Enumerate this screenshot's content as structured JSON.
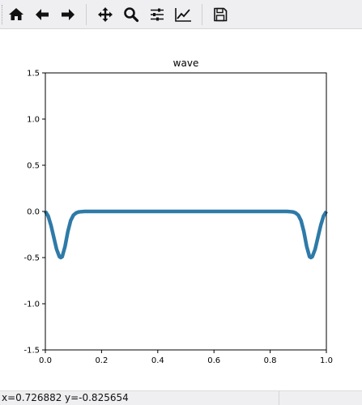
{
  "toolbar": {
    "buttons": [
      {
        "name": "home-button",
        "icon": "home-icon"
      },
      {
        "name": "back-button",
        "icon": "arrow-left-icon"
      },
      {
        "name": "forward-button",
        "icon": "arrow-right-icon"
      },
      {
        "name": "pan-button",
        "icon": "move-icon"
      },
      {
        "name": "zoom-button",
        "icon": "magnifier-icon"
      },
      {
        "name": "subplots-button",
        "icon": "sliders-icon"
      },
      {
        "name": "axes-edit-button",
        "icon": "line-chart-icon"
      },
      {
        "name": "save-button",
        "icon": "floppy-disk-icon"
      }
    ]
  },
  "status": {
    "x_text": "x=0.726882",
    "y_text": "y=-0.825654"
  },
  "chart_data": {
    "type": "line",
    "title": "wave",
    "xlabel": "",
    "ylabel": "",
    "xlim": [
      0.0,
      1.0
    ],
    "ylim": [
      -1.5,
      1.5
    ],
    "xticks": [
      "0.0",
      "0.2",
      "0.4",
      "0.6",
      "0.8",
      "1.0"
    ],
    "yticks": [
      "1.5",
      "1.0",
      "0.5",
      "0.0",
      "-0.5",
      "-1.0",
      "-1.5"
    ],
    "grid": false,
    "line_color": "#2e7aa8",
    "series": [
      {
        "x": [
          0.0,
          0.01,
          0.02,
          0.03,
          0.04,
          0.05,
          0.055,
          0.06,
          0.07,
          0.08,
          0.09,
          0.1,
          0.11,
          0.12,
          0.14,
          0.2,
          0.3,
          0.4,
          0.5,
          0.6,
          0.7,
          0.8,
          0.86,
          0.88,
          0.89,
          0.9,
          0.91,
          0.92,
          0.93,
          0.94,
          0.945,
          0.95,
          0.96,
          0.97,
          0.98,
          0.99,
          1.0
        ],
        "y": [
          0.0,
          -0.05,
          -0.15,
          -0.28,
          -0.41,
          -0.49,
          -0.5,
          -0.49,
          -0.38,
          -0.22,
          -0.1,
          -0.04,
          -0.015,
          -0.005,
          0.0,
          0.0,
          0.0,
          0.0,
          0.0,
          0.0,
          0.0,
          0.0,
          0.0,
          -0.005,
          -0.015,
          -0.04,
          -0.1,
          -0.22,
          -0.38,
          -0.49,
          -0.5,
          -0.49,
          -0.41,
          -0.28,
          -0.15,
          -0.05,
          0.0
        ]
      }
    ]
  }
}
